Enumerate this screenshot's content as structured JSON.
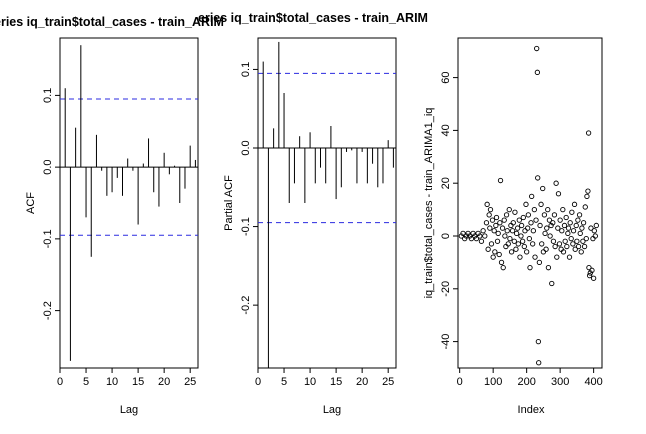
{
  "chart_data": [
    {
      "type": "bar",
      "title": "eries iq_train$total_cases - train_ARIM",
      "xlabel": "Lag",
      "ylabel": "ACF",
      "xlim": [
        0,
        26.5
      ],
      "ylim": [
        -0.28,
        0.18
      ],
      "xticks": [
        0,
        5,
        10,
        15,
        20,
        25
      ],
      "yticks": [
        -0.2,
        -0.1,
        0.0,
        0.1
      ],
      "ci": 0.095,
      "x": [
        1,
        2,
        3,
        4,
        5,
        6,
        7,
        8,
        9,
        10,
        11,
        12,
        13,
        14,
        15,
        16,
        17,
        18,
        19,
        20,
        21,
        22,
        23,
        24,
        25,
        26
      ],
      "values": [
        0.11,
        -0.27,
        0.055,
        0.17,
        -0.07,
        -0.125,
        0.045,
        -0.005,
        -0.04,
        -0.035,
        -0.015,
        -0.04,
        0.012,
        -0.005,
        -0.08,
        0.005,
        0.04,
        -0.035,
        -0.055,
        0.02,
        -0.01,
        0.002,
        -0.05,
        -0.03,
        0.03,
        0.01
      ]
    },
    {
      "type": "bar",
      "title": "eries iq_train$total_cases - train_ARIM",
      "xlabel": "Lag",
      "ylabel": "Partial ACF",
      "xlim": [
        0,
        26.5
      ],
      "ylim": [
        -0.28,
        0.14
      ],
      "xticks": [
        0,
        5,
        10,
        15,
        20,
        25
      ],
      "yticks": [
        -0.2,
        -0.1,
        0.0,
        0.1
      ],
      "ci": 0.095,
      "x": [
        1,
        2,
        3,
        4,
        5,
        6,
        7,
        8,
        9,
        10,
        11,
        12,
        13,
        14,
        15,
        16,
        17,
        18,
        19,
        20,
        21,
        22,
        23,
        24,
        25,
        26
      ],
      "values": [
        0.11,
        -0.28,
        0.025,
        0.135,
        0.07,
        -0.07,
        -0.045,
        0.015,
        -0.07,
        0.02,
        -0.045,
        -0.025,
        -0.045,
        0.028,
        -0.065,
        -0.05,
        -0.005,
        -0.003,
        -0.045,
        -0.005,
        -0.045,
        -0.02,
        -0.05,
        -0.045,
        0.01,
        -0.025
      ]
    },
    {
      "type": "scatter",
      "title": "",
      "xlabel": "Index",
      "ylabel": "iq_train$total_cases - train_ARIMA1_iq",
      "xlim": [
        -5,
        425
      ],
      "ylim": [
        -50,
        75
      ],
      "xticks": [
        0,
        100,
        200,
        300,
        400
      ],
      "yticks": [
        -40,
        -20,
        0,
        20,
        40,
        60
      ],
      "points": [
        [
          5,
          0
        ],
        [
          10,
          1
        ],
        [
          15,
          -1
        ],
        [
          20,
          0
        ],
        [
          25,
          1
        ],
        [
          30,
          0
        ],
        [
          35,
          -1
        ],
        [
          40,
          1
        ],
        [
          45,
          0
        ],
        [
          50,
          -1
        ],
        [
          55,
          1
        ],
        [
          60,
          0
        ],
        [
          65,
          -2
        ],
        [
          70,
          2
        ],
        [
          75,
          0
        ],
        [
          80,
          5
        ],
        [
          82,
          12
        ],
        [
          85,
          -5
        ],
        [
          88,
          8
        ],
        [
          90,
          3
        ],
        [
          92,
          10
        ],
        [
          95,
          -3
        ],
        [
          98,
          6
        ],
        [
          100,
          -8
        ],
        [
          103,
          2
        ],
        [
          105,
          -6
        ],
        [
          108,
          4
        ],
        [
          110,
          7
        ],
        [
          113,
          -2
        ],
        [
          115,
          1
        ],
        [
          118,
          -7
        ],
        [
          120,
          5
        ],
        [
          122,
          21
        ],
        [
          125,
          -10
        ],
        [
          128,
          3
        ],
        [
          130,
          -12
        ],
        [
          133,
          6
        ],
        [
          135,
          0
        ],
        [
          138,
          -4
        ],
        [
          140,
          8
        ],
        [
          142,
          2
        ],
        [
          145,
          -3
        ],
        [
          148,
          10
        ],
        [
          150,
          -1
        ],
        [
          153,
          4
        ],
        [
          155,
          -6
        ],
        [
          158,
          2
        ],
        [
          160,
          5
        ],
        [
          163,
          -2
        ],
        [
          165,
          9
        ],
        [
          168,
          -5
        ],
        [
          170,
          1
        ],
        [
          173,
          3
        ],
        [
          175,
          -3
        ],
        [
          178,
          6
        ],
        [
          180,
          -8
        ],
        [
          183,
          0
        ],
        [
          185,
          4
        ],
        [
          188,
          -2
        ],
        [
          190,
          7
        ],
        [
          193,
          -4
        ],
        [
          195,
          2
        ],
        [
          198,
          12
        ],
        [
          200,
          -6
        ],
        [
          203,
          3
        ],
        [
          205,
          8
        ],
        [
          208,
          -1
        ],
        [
          210,
          -12
        ],
        [
          213,
          5
        ],
        [
          215,
          15
        ],
        [
          218,
          -3
        ],
        [
          220,
          2
        ],
        [
          223,
          10
        ],
        [
          225,
          -8
        ],
        [
          228,
          6
        ],
        [
          230,
          71
        ],
        [
          232,
          62
        ],
        [
          233,
          22
        ],
        [
          235,
          -40
        ],
        [
          236,
          -48
        ],
        [
          238,
          -10
        ],
        [
          240,
          4
        ],
        [
          243,
          12
        ],
        [
          245,
          -3
        ],
        [
          248,
          18
        ],
        [
          250,
          -6
        ],
        [
          253,
          8
        ],
        [
          255,
          1
        ],
        [
          258,
          -5
        ],
        [
          260,
          3
        ],
        [
          263,
          10
        ],
        [
          265,
          -12
        ],
        [
          268,
          6
        ],
        [
          270,
          0
        ],
        [
          273,
          4
        ],
        [
          275,
          -18
        ],
        [
          278,
          5
        ],
        [
          280,
          -2
        ],
        [
          283,
          8
        ],
        [
          285,
          -4
        ],
        [
          288,
          20
        ],
        [
          290,
          -8
        ],
        [
          293,
          3
        ],
        [
          295,
          16
        ],
        [
          298,
          -3
        ],
        [
          300,
          6
        ],
        [
          303,
          -5
        ],
        [
          305,
          2
        ],
        [
          308,
          10
        ],
        [
          310,
          -6
        ],
        [
          313,
          4
        ],
        [
          315,
          -2
        ],
        [
          318,
          7
        ],
        [
          320,
          -4
        ],
        [
          323,
          1
        ],
        [
          325,
          3
        ],
        [
          328,
          -8
        ],
        [
          330,
          5
        ],
        [
          333,
          -1
        ],
        [
          335,
          9
        ],
        [
          338,
          -3
        ],
        [
          340,
          2
        ],
        [
          343,
          12
        ],
        [
          345,
          -5
        ],
        [
          348,
          4
        ],
        [
          350,
          -2
        ],
        [
          353,
          6
        ],
        [
          355,
          -4
        ],
        [
          358,
          8
        ],
        [
          360,
          1
        ],
        [
          363,
          -6
        ],
        [
          365,
          3
        ],
        [
          368,
          -2
        ],
        [
          370,
          5
        ],
        [
          373,
          -4
        ],
        [
          375,
          11
        ],
        [
          378,
          -1
        ],
        [
          380,
          15
        ],
        [
          383,
          17
        ],
        [
          385,
          39
        ],
        [
          386,
          -12
        ],
        [
          388,
          -15
        ],
        [
          390,
          -14
        ],
        [
          392,
          3
        ],
        [
          395,
          -13
        ],
        [
          398,
          -1
        ],
        [
          400,
          -16
        ],
        [
          402,
          2
        ],
        [
          405,
          0
        ],
        [
          408,
          4
        ]
      ]
    }
  ]
}
